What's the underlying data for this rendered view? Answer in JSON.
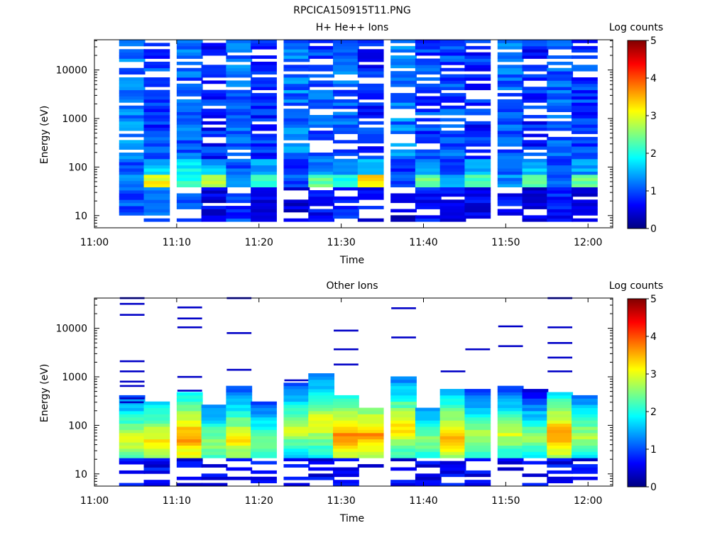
{
  "figure_title": "RPCICA150915T11.PNG",
  "chart_data": [
    {
      "type": "heatmap",
      "title": "H+ He++ Ions",
      "xlabel": "Time",
      "ylabel": "Energy (eV)",
      "x_ticks": [
        "11:00",
        "11:10",
        "11:20",
        "11:30",
        "11:40",
        "11:50",
        "12:00"
      ],
      "x_range": [
        "11:00",
        "12:03"
      ],
      "y_scale": "log",
      "y_range": [
        5.6,
        42000
      ],
      "y_ticks": [
        "10",
        "100",
        "1000",
        "10000"
      ],
      "colorbar": {
        "label": "Log counts",
        "min": 0,
        "max": 5,
        "ticks": [
          "0",
          "1",
          "2",
          "3",
          "4",
          "5"
        ]
      },
      "time_bins": [
        "11:03",
        "11:06",
        "11:10",
        "11:13",
        "11:16",
        "11:19",
        "11:23",
        "11:26",
        "11:29",
        "11:32",
        "11:36",
        "11:39",
        "11:42",
        "11:45",
        "11:49",
        "11:52",
        "11:55",
        "11:58"
      ],
      "energy_bands": [
        {
          "range_eV": [
            7,
            40
          ],
          "log_counts": [
            0.9,
            1.0,
            0.9,
            0.4,
            0.8,
            0.5,
            0.4,
            0.5,
            0.7,
            0.5,
            0.3,
            0.6,
            0.5,
            0.4,
            0.5,
            0.4,
            0.6,
            0.5
          ]
        },
        {
          "range_eV": [
            40,
            70
          ],
          "log_counts": [
            1.2,
            3.1,
            2.1,
            2.9,
            1.2,
            2.2,
            1.0,
            2.4,
            2.0,
            3.2,
            1.0,
            2.4,
            1.4,
            2.3,
            1.3,
            2.2,
            1.0,
            2.4
          ]
        },
        {
          "range_eV": [
            70,
            150
          ],
          "log_counts": [
            1.0,
            1.6,
            1.8,
            1.5,
            1.0,
            1.4,
            0.7,
            1.3,
            1.5,
            1.7,
            0.8,
            1.4,
            0.9,
            1.4,
            1.0,
            1.5,
            0.9,
            1.4
          ]
        },
        {
          "range_eV": [
            150,
            42000
          ],
          "log_counts": [
            1.1,
            0.8,
            1.0,
            0.7,
            1.0,
            0.7,
            1.1,
            0.9,
            1.0,
            0.7,
            1.1,
            0.8,
            0.9,
            0.7,
            1.0,
            0.7,
            1.0,
            0.8
          ]
        }
      ]
    },
    {
      "type": "heatmap",
      "title": "Other Ions",
      "xlabel": "Time",
      "ylabel": "Energy (eV)",
      "x_ticks": [
        "11:00",
        "11:10",
        "11:20",
        "11:30",
        "11:40",
        "11:50",
        "12:00"
      ],
      "x_range": [
        "11:00",
        "12:03"
      ],
      "y_scale": "log",
      "y_range": [
        5.6,
        42000
      ],
      "y_ticks": [
        "10",
        "100",
        "1000",
        "10000"
      ],
      "colorbar": {
        "label": "Log counts",
        "min": 0,
        "max": 5,
        "ticks": [
          "0",
          "1",
          "2",
          "3",
          "4",
          "5"
        ]
      },
      "time_bins": [
        "11:03",
        "11:06",
        "11:10",
        "11:13",
        "11:16",
        "11:19",
        "11:23",
        "11:26",
        "11:29",
        "11:32",
        "11:36",
        "11:39",
        "11:42",
        "11:45",
        "11:49",
        "11:52",
        "11:55",
        "11:58"
      ],
      "peak_energy_eV": [
        50,
        50,
        55,
        45,
        50,
        45,
        80,
        110,
        60,
        65,
        90,
        50,
        55,
        60,
        65,
        55,
        65,
        60
      ],
      "peak_log_counts": [
        3.0,
        3.2,
        3.7,
        2.7,
        3.2,
        2.6,
        2.9,
        3.2,
        3.8,
        3.6,
        3.3,
        2.6,
        3.5,
        2.8,
        2.9,
        2.6,
        3.6,
        2.8
      ],
      "upper_energy_eV": [
        420,
        330,
        480,
        280,
        700,
        330,
        750,
        1200,
        420,
        230,
        1000,
        230,
        580,
        570,
        680,
        560,
        480,
        410
      ],
      "sparse_high_energy_eV": [
        [
          42000,
          32000,
          19000,
          2100,
          1300,
          800,
          650,
          360,
          300
        ],
        [],
        [
          27000,
          16000,
          10500,
          1000,
          520
        ],
        [],
        [
          42000,
          8000,
          1400
        ],
        [],
        [
          850
        ],
        [],
        [
          9000,
          3700,
          1800
        ],
        [],
        [
          26000,
          6500
        ],
        [],
        [
          1300
        ],
        [
          3700
        ],
        [
          11000,
          4300
        ],
        [],
        [
          42000,
          10500,
          5000,
          2500,
          1300
        ],
        []
      ]
    }
  ]
}
